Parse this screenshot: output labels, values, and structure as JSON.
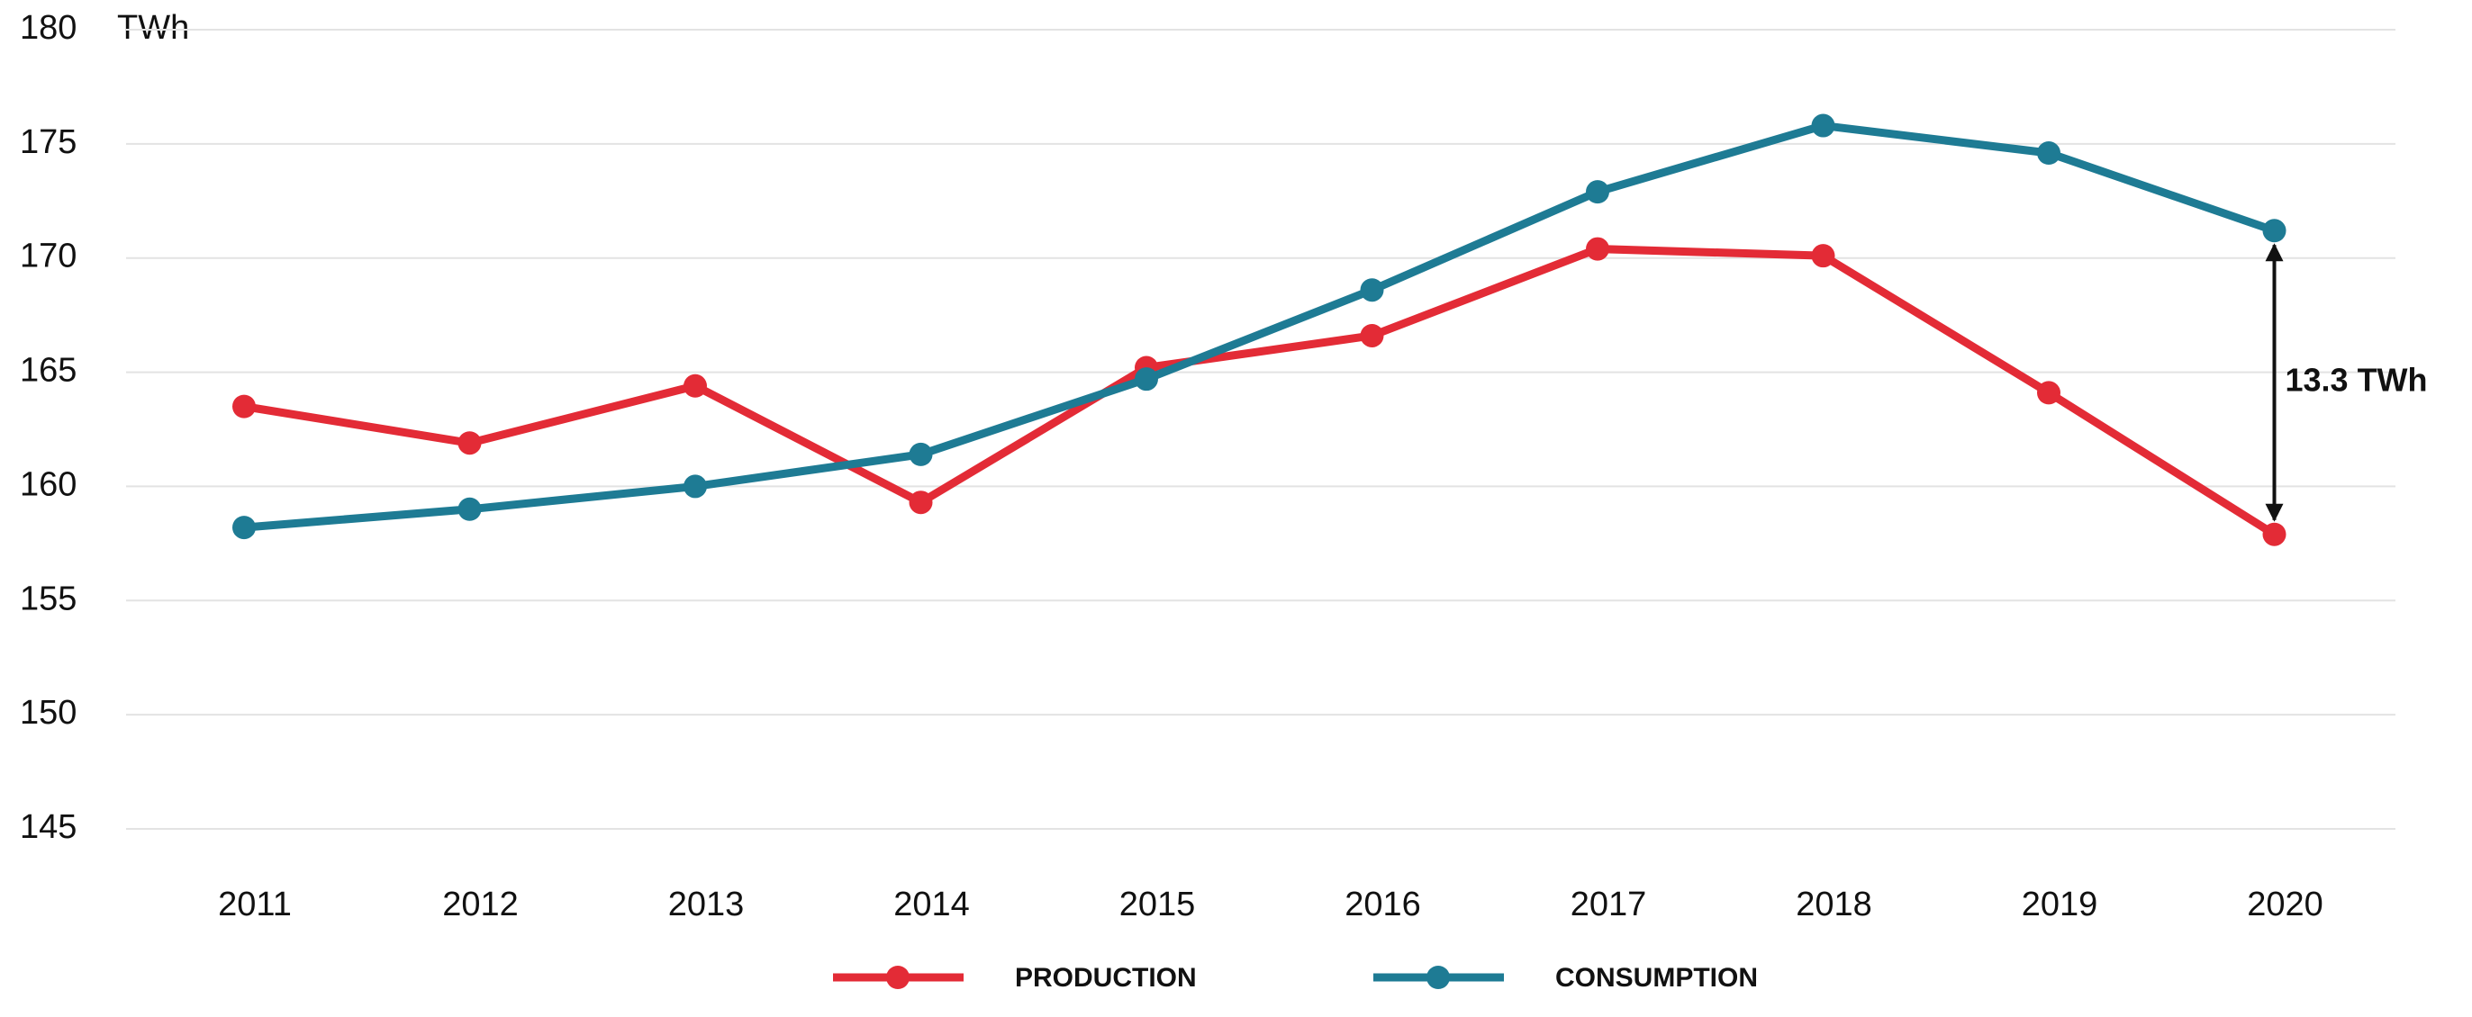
{
  "chart_data": {
    "type": "line",
    "y_label": "TWh",
    "categories": [
      "2011",
      "2012",
      "2013",
      "2014",
      "2015",
      "2016",
      "2017",
      "2018",
      "2019",
      "2020"
    ],
    "series": [
      {
        "name": "PRODUCTION",
        "color": "#e32b36",
        "values": [
          163.5,
          161.9,
          164.4,
          159.3,
          165.2,
          166.6,
          170.4,
          170.1,
          164.1,
          157.9
        ]
      },
      {
        "name": "CONSUMPTION",
        "color": "#1e7b94",
        "values": [
          158.2,
          159.0,
          160.0,
          161.4,
          164.7,
          168.6,
          172.9,
          175.8,
          174.6,
          171.2
        ]
      }
    ],
    "annotation": "13.3 TWh",
    "ylim": [
      145,
      180
    ],
    "yticks": [
      145,
      150,
      155,
      160,
      165,
      170,
      175,
      180
    ],
    "grid": true
  }
}
